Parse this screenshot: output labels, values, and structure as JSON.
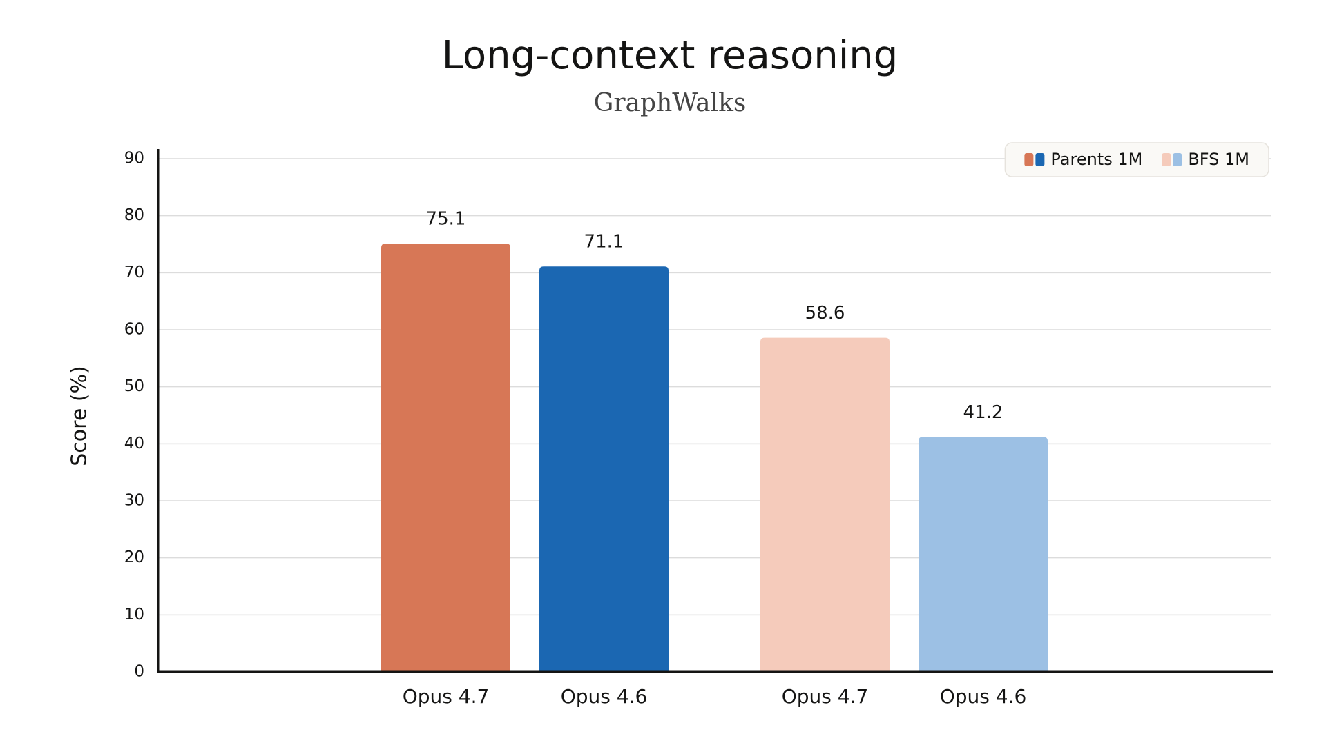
{
  "chart_data": {
    "type": "grouped-bar",
    "title": "Long-context reasoning",
    "subtitle": "GraphWalks",
    "y_label": "Score (%)",
    "categories": [
      "Opus 4.7",
      "Opus 4.6"
    ],
    "series": [
      {
        "name": "Parents 1M",
        "colors": [
          "#d77756",
          "#1b67b2"
        ],
        "values": [
          75.1,
          71.1
        ]
      },
      {
        "name": "BFS 1M",
        "colors": [
          "#f5cbbb",
          "#9cc0e4"
        ],
        "values": [
          58.6,
          41.2
        ]
      }
    ],
    "ylim": [
      0,
      90
    ],
    "yticks": [
      0,
      10,
      20,
      30,
      40,
      50,
      60,
      70,
      80,
      90
    ],
    "grid": true,
    "legend": "top-right"
  }
}
